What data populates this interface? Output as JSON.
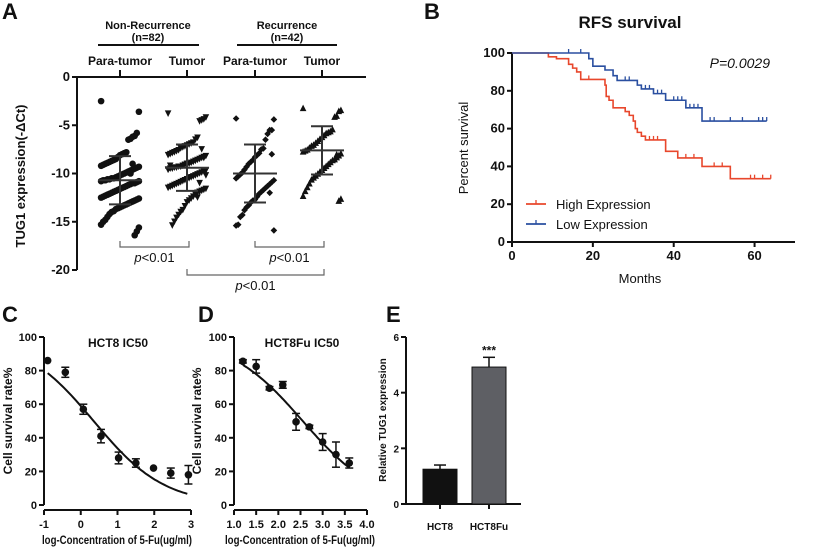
{
  "panels": {
    "a": "A",
    "b": "B",
    "c": "C",
    "d": "D",
    "e": "E"
  },
  "chart_data": [
    {
      "type": "scatter",
      "panel": "A",
      "ylabel": "TUG1 expression(-ΔCt)",
      "ylim": [
        -20,
        0
      ],
      "yticks": [
        "0",
        "-5",
        "-10",
        "-15",
        "-20"
      ],
      "yticks_values": [
        0,
        -5,
        -10,
        -15,
        -20
      ],
      "groups": [
        {
          "label": "Non-Recurrence",
          "n": "(n=82)"
        },
        {
          "label": "Recurrence",
          "n": "(n=42)"
        }
      ],
      "categories": [
        "Para-tumor",
        "Tumor",
        "Para-tumor",
        "Tumor"
      ],
      "series": [
        {
          "marker": "circle",
          "mean": -10.7,
          "sd": 2.5,
          "values": [
            -2.5,
            -3.6,
            -5.8,
            -6.1,
            -6.2,
            -6.4,
            -6.5,
            -7.8,
            -7.9,
            -8.0,
            -8.1,
            -8.3,
            -8.5,
            -8.6,
            -8.7,
            -8.8,
            -8.9,
            -9.0,
            -9.1,
            -9.2,
            -9.3,
            -9.4,
            -9.5,
            -9.6,
            -9.7,
            -9.8,
            -9.9,
            -10.0,
            -10.1,
            -10.2,
            -10.3,
            -10.4,
            -10.5,
            -10.5,
            -10.6,
            -10.6,
            -10.7,
            -10.7,
            -10.8,
            -10.8,
            -10.9,
            -11.0,
            -11.0,
            -11.1,
            -11.2,
            -11.3,
            -11.4,
            -11.5,
            -11.6,
            -11.7,
            -11.8,
            -11.9,
            -12.0,
            -12.1,
            -12.2,
            -12.3,
            -12.4,
            -12.5,
            -12.6,
            -12.7,
            -12.8,
            -12.9,
            -13.0,
            -13.1,
            -13.2,
            -13.3,
            -13.4,
            -13.5,
            -13.6,
            -13.7,
            -13.9,
            -14.0,
            -14.2,
            -14.5,
            -14.8,
            -15.0,
            -15.3,
            -15.6,
            -16.0,
            -16.4,
            -9.0,
            -10.0
          ]
        },
        {
          "marker": "triangle-down",
          "mean": -9.4,
          "sd": 2.4,
          "values": [
            -3.8,
            -4.2,
            -4.4,
            -4.5,
            -4.6,
            -6.3,
            -6.5,
            -6.8,
            -6.9,
            -7.0,
            -7.1,
            -7.2,
            -7.3,
            -7.4,
            -7.6,
            -7.7,
            -7.8,
            -7.9,
            -8.0,
            -8.1,
            -8.2,
            -8.3,
            -8.4,
            -8.5,
            -8.6,
            -8.7,
            -8.8,
            -8.9,
            -9.0,
            -9.0,
            -9.1,
            -9.2,
            -9.3,
            -9.3,
            -9.4,
            -9.4,
            -9.5,
            -9.5,
            -9.6,
            -9.7,
            -9.8,
            -9.9,
            -10.0,
            -10.1,
            -10.2,
            -10.3,
            -10.4,
            -10.5,
            -10.6,
            -10.7,
            -10.8,
            -10.9,
            -11.0,
            -11.1,
            -11.2,
            -11.3,
            -11.4,
            -11.5,
            -11.6,
            -11.7,
            -11.8,
            -11.9,
            -12.0,
            -12.2,
            -12.4,
            -12.6,
            -12.8,
            -13.0,
            -13.4,
            -13.8,
            -14.0,
            -14.3,
            -14.6,
            -15.0,
            -15.4,
            -9.2,
            -9.6,
            -10.2,
            -8.4,
            -7.5,
            -11.0,
            -12.5
          ]
        },
        {
          "marker": "diamond",
          "mean": -10.0,
          "sd": 3.0,
          "values": [
            -4.3,
            -4.4,
            -5.5,
            -5.5,
            -5.9,
            -6.5,
            -7.4,
            -7.5,
            -7.9,
            -8.1,
            -8.3,
            -8.6,
            -8.8,
            -9.0,
            -9.3,
            -9.6,
            -9.9,
            -10.1,
            -10.3,
            -10.5,
            -10.7,
            -10.9,
            -11.1,
            -11.3,
            -11.5,
            -11.7,
            -11.9,
            -12.1,
            -12.4,
            -12.7,
            -12.8,
            -13.0,
            -13.3,
            -13.5,
            -13.8,
            -14.3,
            -14.5,
            -15.3,
            -15.4,
            -15.9,
            -8.0,
            -12.0
          ]
        },
        {
          "marker": "triangle-up",
          "mean": -7.6,
          "sd": 2.5,
          "values": [
            -3.2,
            -3.4,
            -3.5,
            -4.0,
            -4.1,
            -5.4,
            -5.6,
            -5.7,
            -5.8,
            -6.0,
            -6.2,
            -6.4,
            -6.6,
            -6.8,
            -7.0,
            -7.1,
            -7.3,
            -7.5,
            -7.6,
            -7.7,
            -7.9,
            -8.1,
            -8.3,
            -8.5,
            -8.6,
            -8.8,
            -9.0,
            -9.2,
            -9.4,
            -9.6,
            -9.8,
            -10.0,
            -10.2,
            -10.4,
            -10.6,
            -11.0,
            -11.4,
            -11.8,
            -12.3,
            -12.6,
            -12.8,
            -8.0
          ]
        }
      ],
      "annotations": [
        {
          "compare": [
            0,
            1
          ],
          "text_p": "p",
          "text_rest": "<0.01"
        },
        {
          "compare": [
            2,
            3
          ],
          "text_p": "p",
          "text_rest": "<0.01"
        },
        {
          "compare": [
            1,
            3
          ],
          "text_p": "p",
          "text_rest": "<0.01"
        }
      ]
    },
    {
      "type": "line",
      "panel": "B",
      "title": "RFS survival",
      "xlabel": "Months",
      "ylabel": "Percent survival",
      "xlim": [
        0,
        70
      ],
      "ylim": [
        0,
        100
      ],
      "xticks": [
        0,
        20,
        40,
        60
      ],
      "yticks": [
        0,
        20,
        40,
        60,
        80,
        100
      ],
      "annotation": "P=0.0029",
      "legend_position": "bottom-left",
      "series": [
        {
          "name": "High Expression",
          "color": "#e8472c",
          "steps": [
            [
              0,
              100
            ],
            [
              9,
              98
            ],
            [
              11,
              97
            ],
            [
              14,
              94
            ],
            [
              15,
              92
            ],
            [
              16,
              90
            ],
            [
              17,
              86
            ],
            [
              23,
              83
            ],
            [
              23.3,
              77
            ],
            [
              24,
              75
            ],
            [
              25,
              71
            ],
            [
              27,
              71
            ],
            [
              28,
              69
            ],
            [
              29,
              67
            ],
            [
              30,
              64
            ],
            [
              30.5,
              60
            ],
            [
              31,
              58
            ],
            [
              32,
              56
            ],
            [
              33,
              54
            ],
            [
              38,
              48
            ],
            [
              41,
              44.5
            ],
            [
              47,
              40
            ],
            [
              54,
              33.5
            ],
            [
              64,
              33.5
            ]
          ],
          "censored": [
            19,
            34,
            35,
            36,
            43,
            45,
            50,
            52,
            59,
            60,
            62,
            64
          ]
        },
        {
          "name": "Low Expression",
          "color": "#2a4fa0",
          "steps": [
            [
              0,
              100
            ],
            [
              19,
              97
            ],
            [
              20,
              93
            ],
            [
              23,
              91
            ],
            [
              25,
              88
            ],
            [
              26,
              85.5
            ],
            [
              31,
              83
            ],
            [
              32,
              81
            ],
            [
              35,
              78.5
            ],
            [
              38,
              75
            ],
            [
              43,
              71
            ],
            [
              47,
              64
            ],
            [
              63,
              64
            ]
          ],
          "censored": [
            14,
            17,
            28,
            29,
            33,
            34,
            36,
            37,
            40,
            41,
            42,
            44,
            45,
            46,
            49,
            50,
            54,
            57,
            61,
            62,
            63
          ]
        }
      ]
    },
    {
      "type": "scatter",
      "panel": "C",
      "title": "HCT8 IC50",
      "xlabel": "log-Concentration of 5-Fu(ug/ml)",
      "ylabel": "Cell survival rate%",
      "xlim": [
        -1,
        3
      ],
      "ylim": [
        0,
        100
      ],
      "xticks": [
        "-1",
        "0",
        "1",
        "2",
        "3"
      ],
      "xticks_values": [
        -1,
        0,
        1,
        2,
        3
      ],
      "yticks": [
        0,
        20,
        40,
        60,
        80,
        100
      ],
      "points": [
        [
          -0.9,
          86,
          0
        ],
        [
          -0.42,
          79,
          3
        ],
        [
          0.07,
          57,
          3
        ],
        [
          0.55,
          41,
          4
        ],
        [
          1.03,
          28,
          3.5
        ],
        [
          1.5,
          25,
          2.5
        ],
        [
          1.98,
          22,
          0
        ],
        [
          2.45,
          19,
          3
        ],
        [
          2.93,
          18,
          5.5
        ]
      ],
      "fit": {
        "top": 100,
        "bottom": 0,
        "logIC50": 0.35,
        "hill": 0.45,
        "x_range": [
          -0.9,
          2.9
        ]
      }
    },
    {
      "type": "scatter",
      "panel": "D",
      "title": "HCT8Fu IC50",
      "xlabel": "log-Concentration of 5-Fu(ug/ml)",
      "ylabel": "Cell survival rate%",
      "xlim": [
        1,
        4
      ],
      "ylim": [
        0,
        100
      ],
      "xticks": [
        "1.0",
        "1.5",
        "2.0",
        "2.5",
        "3.0",
        "3.5",
        "4.0"
      ],
      "xticks_values": [
        1,
        1.5,
        2,
        2.5,
        3,
        3.5,
        4
      ],
      "yticks": [
        0,
        20,
        40,
        60,
        80,
        100
      ],
      "points": [
        [
          1.2,
          85.5,
          1
        ],
        [
          1.5,
          82.5,
          4
        ],
        [
          1.8,
          69.5,
          1
        ],
        [
          2.1,
          71.5,
          2
        ],
        [
          2.4,
          49.5,
          5
        ],
        [
          2.7,
          46.5,
          1
        ],
        [
          3.0,
          37.5,
          5
        ],
        [
          3.3,
          30,
          7.5
        ],
        [
          3.6,
          25,
          3
        ]
      ],
      "fit": {
        "top": 100,
        "bottom": 0,
        "logIC50": 2.55,
        "hill": 0.52,
        "x_range": [
          1.2,
          3.6
        ]
      }
    },
    {
      "type": "bar",
      "panel": "E",
      "ylabel": "Relative TUG1 expression",
      "ylim": [
        0,
        6
      ],
      "yticks": [
        0,
        2,
        4,
        6
      ],
      "categories": [
        "HCT8",
        "HCT8Fu"
      ],
      "values": [
        1.25,
        4.92
      ],
      "errors": [
        0.15,
        0.35
      ],
      "colors": [
        "#111111",
        "#5e5f64"
      ],
      "significance": [
        "",
        "***"
      ]
    }
  ]
}
